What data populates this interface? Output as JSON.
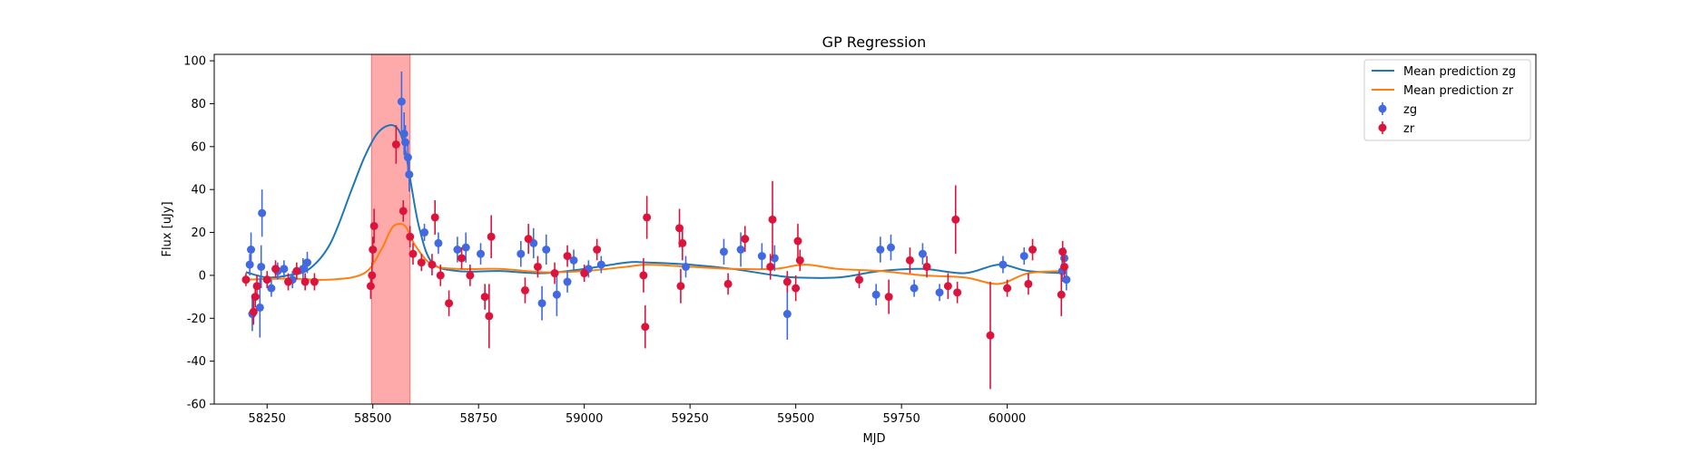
{
  "chart_data": {
    "type": "scatter",
    "title": "GP Regression",
    "xlabel": "MJD",
    "ylabel": "Flux [uJy]",
    "xlim": [
      58125,
      61250
    ],
    "ylim": [
      -60,
      103
    ],
    "xticks": [
      58250,
      58500,
      58750,
      59000,
      59250,
      59500,
      59750,
      60000
    ],
    "yticks": [
      -60,
      -40,
      -20,
      0,
      20,
      40,
      60,
      80,
      100
    ],
    "grid": false,
    "legend": "top-right",
    "shaded_region": {
      "x": [
        58497,
        58588
      ],
      "color": "#ffaaaa"
    },
    "series": [
      {
        "name": "Mean prediction zg",
        "kind": "line",
        "color": "#1f77b4",
        "x": [
          58200,
          58250,
          58300,
          58350,
          58400,
          58450,
          58480,
          58510,
          58540,
          58560,
          58575,
          58590,
          58610,
          58640,
          58700,
          58800,
          58900,
          59000,
          59100,
          59150,
          59250,
          59350,
          59450,
          59500,
          59600,
          59700,
          59800,
          59900,
          59980,
          60050,
          60140
        ],
        "y": [
          1.5,
          -1,
          0,
          3,
          15,
          40,
          55,
          66,
          70,
          68,
          60,
          43,
          22,
          6,
          2,
          2,
          1,
          3,
          6,
          6,
          5,
          3,
          0,
          -1,
          -1,
          2,
          3,
          1,
          5,
          2,
          1
        ]
      },
      {
        "name": "Mean prediction zr",
        "kind": "line",
        "color": "#ff7f0e",
        "x": [
          58200,
          58300,
          58400,
          58480,
          58520,
          58545,
          58565,
          58580,
          58600,
          58640,
          58700,
          58800,
          58900,
          59000,
          59100,
          59150,
          59250,
          59350,
          59450,
          59520,
          59600,
          59700,
          59800,
          59900,
          59980,
          60050,
          60140
        ],
        "y": [
          -2,
          -1.5,
          -2,
          1,
          12,
          22,
          24,
          22,
          14,
          5,
          3,
          3,
          1.5,
          2,
          4,
          5,
          4,
          3,
          3,
          5,
          3,
          2,
          0,
          -1,
          -4,
          1,
          2
        ]
      },
      {
        "name": "zg",
        "kind": "errorbar",
        "color": "#4169e1",
        "points": [
          [
            58209,
            5,
            5
          ],
          [
            58212,
            12,
            8
          ],
          [
            58215,
            -18,
            8
          ],
          [
            58233,
            -15,
            14
          ],
          [
            58236,
            4,
            10
          ],
          [
            58238,
            29,
            11
          ],
          [
            58260,
            -6,
            4
          ],
          [
            58275,
            2,
            4
          ],
          [
            58290,
            3,
            4
          ],
          [
            58310,
            -2,
            4
          ],
          [
            58335,
            3,
            5
          ],
          [
            58345,
            6,
            5
          ],
          [
            58568,
            81,
            14
          ],
          [
            58574,
            66,
            10
          ],
          [
            58577,
            62,
            8
          ],
          [
            58583,
            55,
            8
          ],
          [
            58586,
            47,
            8
          ],
          [
            58622,
            20,
            4
          ],
          [
            58655,
            15,
            5
          ],
          [
            58700,
            12,
            6
          ],
          [
            58720,
            13,
            7
          ],
          [
            58755,
            10,
            5
          ],
          [
            58850,
            10,
            6
          ],
          [
            58880,
            15,
            7
          ],
          [
            58900,
            -13,
            8
          ],
          [
            58910,
            12,
            7
          ],
          [
            58935,
            -9,
            10
          ],
          [
            58960,
            -3,
            5
          ],
          [
            58975,
            7,
            5
          ],
          [
            59010,
            3,
            4
          ],
          [
            59040,
            5,
            4
          ],
          [
            59240,
            4,
            5
          ],
          [
            59330,
            11,
            6
          ],
          [
            59370,
            12,
            8
          ],
          [
            59420,
            9,
            6
          ],
          [
            59450,
            8,
            6
          ],
          [
            59480,
            -18,
            12
          ],
          [
            59690,
            -9,
            5
          ],
          [
            59700,
            12,
            6
          ],
          [
            59725,
            13,
            6
          ],
          [
            59780,
            -6,
            4
          ],
          [
            59800,
            10,
            5
          ],
          [
            59840,
            -8,
            4
          ],
          [
            59990,
            5,
            4
          ],
          [
            60040,
            9,
            4
          ],
          [
            60130,
            2,
            5
          ],
          [
            60135,
            8,
            5
          ],
          [
            60140,
            -2,
            5
          ]
        ]
      },
      {
        "name": "zr",
        "kind": "errorbar",
        "color": "#dc143c",
        "points": [
          [
            58200,
            -2,
            3
          ],
          [
            58218,
            -17,
            6
          ],
          [
            58222,
            -10,
            5
          ],
          [
            58226,
            -5,
            5
          ],
          [
            58250,
            -2,
            4
          ],
          [
            58270,
            3,
            4
          ],
          [
            58300,
            -3,
            4
          ],
          [
            58320,
            2,
            4
          ],
          [
            58340,
            -3,
            4
          ],
          [
            58362,
            -3,
            4
          ],
          [
            58495,
            -5,
            6
          ],
          [
            58498,
            0,
            6
          ],
          [
            58500,
            12,
            6
          ],
          [
            58503,
            23,
            8
          ],
          [
            58555,
            61,
            9
          ],
          [
            58572,
            30,
            5
          ],
          [
            58588,
            18,
            5
          ],
          [
            58595,
            10,
            5
          ],
          [
            58615,
            6,
            4
          ],
          [
            58640,
            5,
            5
          ],
          [
            58647,
            27,
            8
          ],
          [
            58660,
            0,
            5
          ],
          [
            58680,
            -13,
            6
          ],
          [
            58710,
            8,
            5
          ],
          [
            58730,
            0,
            5
          ],
          [
            58765,
            -10,
            6
          ],
          [
            58775,
            -19,
            15
          ],
          [
            58780,
            18,
            10
          ],
          [
            58860,
            -7,
            6
          ],
          [
            58868,
            17,
            7
          ],
          [
            58890,
            4,
            5
          ],
          [
            58930,
            1,
            5
          ],
          [
            58960,
            9,
            5
          ],
          [
            59000,
            1,
            4
          ],
          [
            59030,
            12,
            5
          ],
          [
            59140,
            0,
            8
          ],
          [
            59144,
            -24,
            10
          ],
          [
            59148,
            27,
            10
          ],
          [
            59225,
            22,
            9
          ],
          [
            59228,
            -5,
            8
          ],
          [
            59232,
            15,
            8
          ],
          [
            59340,
            -4,
            5
          ],
          [
            59380,
            17,
            6
          ],
          [
            59440,
            4,
            6
          ],
          [
            59445,
            26,
            18
          ],
          [
            59480,
            -3,
            5
          ],
          [
            59500,
            -6,
            6
          ],
          [
            59505,
            16,
            8
          ],
          [
            59510,
            7,
            5
          ],
          [
            59650,
            -2,
            4
          ],
          [
            59720,
            -10,
            8
          ],
          [
            59770,
            7,
            6
          ],
          [
            59810,
            4,
            5
          ],
          [
            59860,
            -5,
            6
          ],
          [
            59878,
            26,
            16
          ],
          [
            59882,
            -8,
            5
          ],
          [
            59960,
            -28,
            25
          ],
          [
            60000,
            -6,
            4
          ],
          [
            60050,
            -4,
            5
          ],
          [
            60060,
            12,
            5
          ],
          [
            60128,
            -9,
            10
          ],
          [
            60131,
            11,
            5
          ],
          [
            60135,
            4,
            5
          ]
        ]
      }
    ]
  }
}
